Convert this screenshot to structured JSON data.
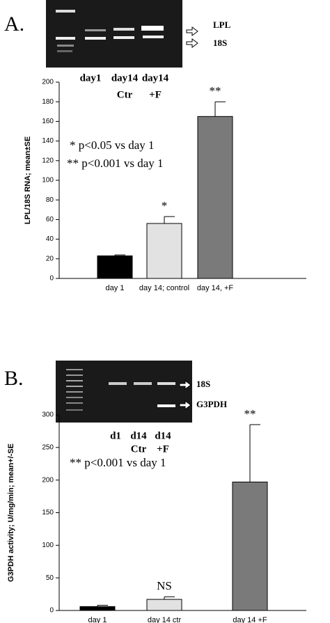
{
  "chart_data": [
    {
      "type": "bar",
      "panel_label": "A.",
      "y_label": "LPL/18S RNA; mean±SE",
      "categories": [
        "day 1",
        "day 14; control",
        "day 14, +F"
      ],
      "values": [
        23,
        56,
        165
      ],
      "errors": [
        1,
        7,
        15
      ],
      "colors": [
        "#000000",
        "#e2e2e2",
        "#7a7a7a"
      ],
      "bar_labels": [
        null,
        "*",
        "**"
      ],
      "annotations": [
        "* p<0.05 vs day 1",
        "** p<0.001 vs day 1"
      ],
      "ylim": [
        0,
        200
      ],
      "yticks": [
        0,
        20,
        40,
        60,
        80,
        100,
        120,
        140,
        160,
        180,
        200
      ],
      "gel": {
        "band_labels": [
          "LPL",
          "18S"
        ],
        "lane_labels": [
          [
            "day1"
          ],
          [
            "day14",
            "Ctr"
          ],
          [
            "day14",
            "+F"
          ]
        ]
      }
    },
    {
      "type": "bar",
      "panel_label": "B.",
      "y_label": "G3PDH activity; U/mg/min; mean+/-SE",
      "categories": [
        "day 1",
        "day 14 ctr",
        "day 14 +F"
      ],
      "values": [
        6,
        17,
        197
      ],
      "errors": [
        2,
        4,
        88
      ],
      "colors": [
        "#000000",
        "#e2e2e2",
        "#7a7a7a"
      ],
      "bar_labels": [
        null,
        "NS",
        "**"
      ],
      "annotations": [
        "** p<0.001 vs day 1"
      ],
      "ylim": [
        0,
        300
      ],
      "yticks": [
        0,
        50,
        100,
        150,
        200,
        250,
        300
      ],
      "gel": {
        "band_labels": [
          "18S",
          "G3PDH"
        ],
        "lane_labels": [
          [
            "d1"
          ],
          [
            "d14",
            "Ctr"
          ],
          [
            "d14",
            "+F"
          ]
        ]
      }
    }
  ]
}
